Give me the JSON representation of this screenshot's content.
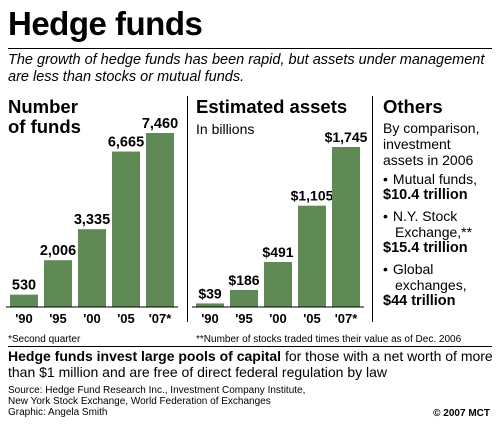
{
  "title": "Hedge funds",
  "subtitle": "The growth of hedge funds has been rapid, but assets under management are less than stocks or mutual funds.",
  "chart_data": [
    {
      "type": "bar",
      "title": "Number of funds",
      "categories": [
        "'90",
        "'95",
        "'00",
        "'05",
        "'07*"
      ],
      "values": [
        530,
        2006,
        3335,
        6665,
        7460
      ],
      "value_labels": [
        "530",
        "2,006",
        "3,335",
        "6,665",
        "7,460"
      ],
      "footnote": "*Second quarter",
      "bar_color": "#5f8a55"
    },
    {
      "type": "bar",
      "title": "Estimated assets",
      "subtitle": "In billions",
      "categories": [
        "'90",
        "'95",
        "'00",
        "'05",
        "'07*"
      ],
      "values": [
        39,
        186,
        491,
        1105,
        1745
      ],
      "value_labels": [
        "$39",
        "$186",
        "$491",
        "$1,105",
        "$1,745"
      ],
      "bar_color": "#5f8a55"
    }
  ],
  "others": {
    "title": "Others",
    "intro": [
      "By comparison,",
      "investment",
      "assets in 2006"
    ],
    "items": [
      {
        "bullet": "•",
        "label_lines": [
          "Mutual funds,"
        ],
        "value": "$10.4 trillion"
      },
      {
        "bullet": "•",
        "label_lines": [
          "N.Y. Stock",
          "Exchange,**"
        ],
        "value": "$15.4 trillion"
      },
      {
        "bullet": "•",
        "label_lines": [
          "Global",
          "exchanges,"
        ],
        "value": "$44 trillion"
      }
    ]
  },
  "footnote2": "**Number of stocks traded times their value as of Dec. 2006",
  "bottom_bold": "Hedge funds invest large pools of capital",
  "bottom_rest": " for those with a net worth of more than $1 million and are free of direct federal regulation by law",
  "source_lines": [
    "Source: Hedge Fund Research Inc., Investment Company Institute,",
    "New York Stock Exchange, World Federation of Exchanges",
    "Graphic: Angela Smith"
  ],
  "copyright": "© 2007 MCT"
}
